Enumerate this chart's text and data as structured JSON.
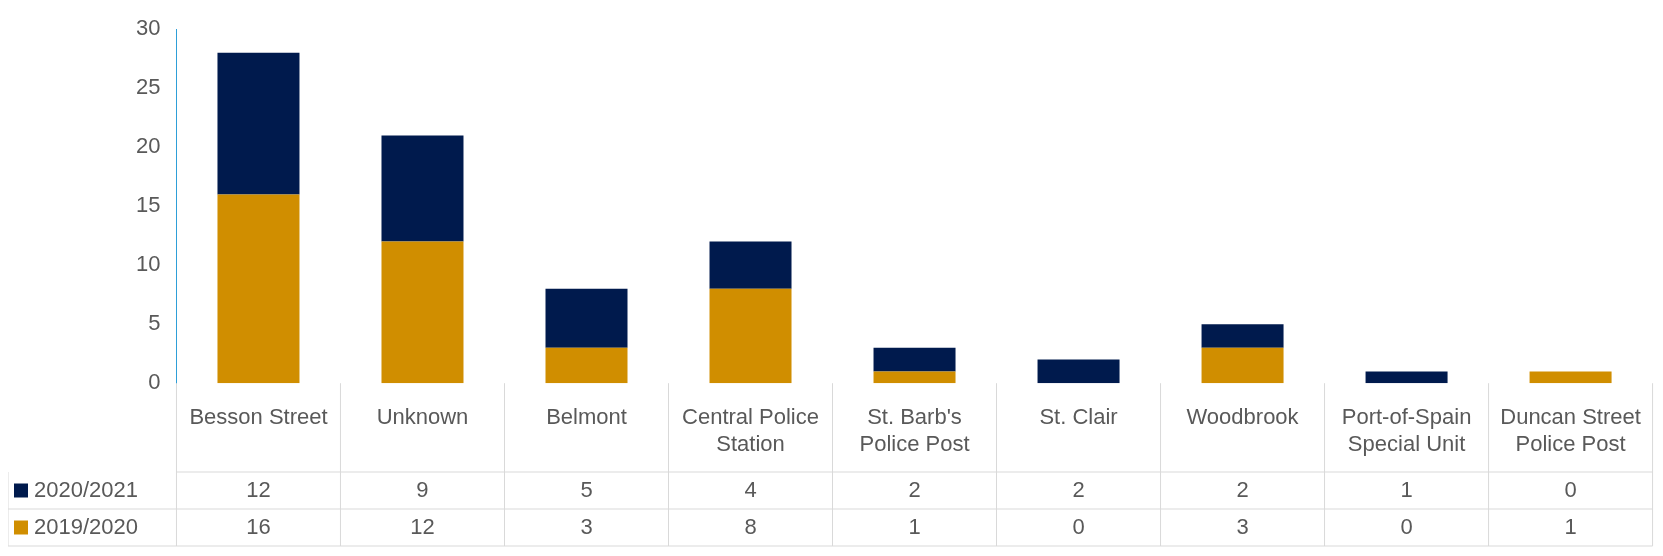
{
  "chart_data": {
    "type": "bar",
    "stacked": true,
    "categories": [
      "Besson Street",
      "Unknown",
      "Belmont",
      "Central Police Station",
      "St. Barb's Police Post",
      "St. Clair",
      "Woodbrook",
      "Port-of-Spain Special Unit",
      "Duncan Street Police Post"
    ],
    "series": [
      {
        "name": "2019/2020",
        "color": "#d08e00",
        "values": [
          16,
          12,
          3,
          8,
          1,
          0,
          3,
          0,
          1
        ]
      },
      {
        "name": "2020/2021",
        "color": "#001a4d",
        "values": [
          12,
          9,
          5,
          4,
          2,
          2,
          2,
          1,
          0
        ]
      }
    ],
    "ylim": [
      0,
      30
    ],
    "yticks": [
      0,
      5,
      10,
      15,
      20,
      25,
      30
    ],
    "grid": false,
    "legend": "bottom left",
    "data_labels": true
  }
}
